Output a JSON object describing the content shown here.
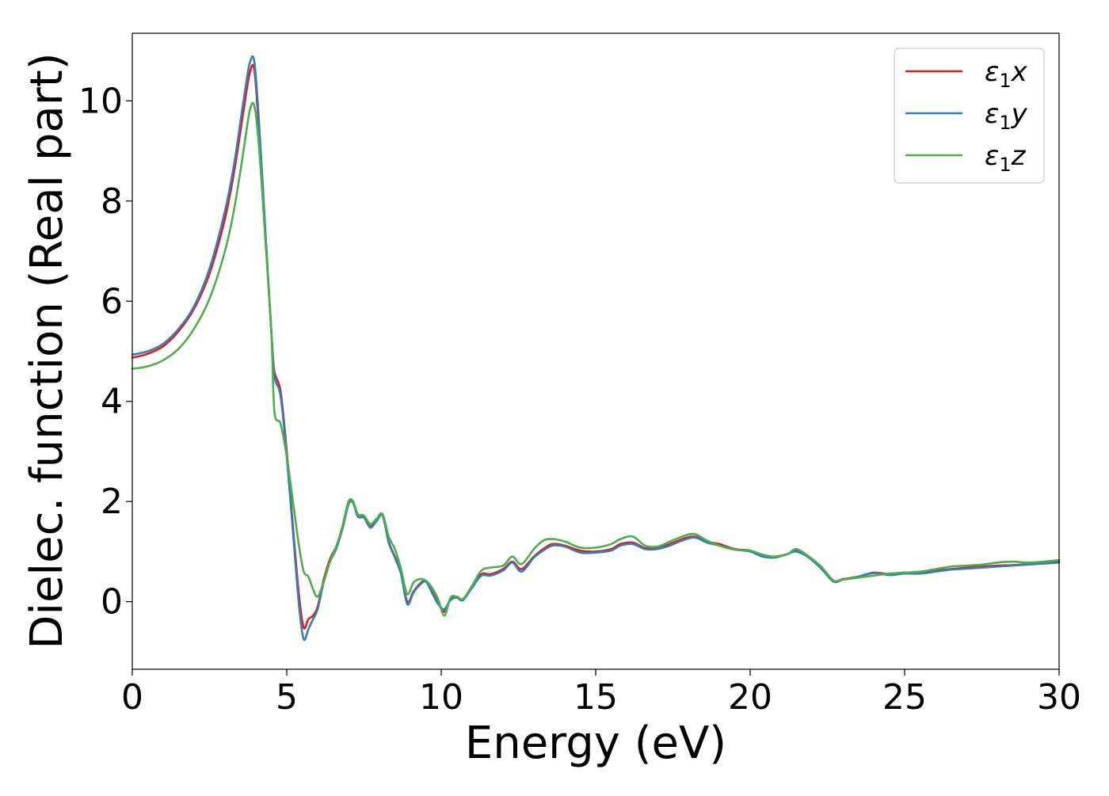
{
  "chart_data": {
    "type": "line",
    "title": "",
    "xlabel": "Energy (eV)",
    "ylabel": "Dielec. function (Real part)",
    "xlim": [
      0,
      30
    ],
    "ylim": [
      -1.35,
      11.35
    ],
    "xticks": [
      0,
      5,
      10,
      15,
      20,
      25,
      30
    ],
    "yticks": [
      0,
      2,
      4,
      6,
      8,
      10
    ],
    "xtick_labels": [
      "0",
      "5",
      "10",
      "15",
      "20",
      "25",
      "30"
    ],
    "ytick_labels": [
      "0",
      "2",
      "4",
      "6",
      "8",
      "10"
    ],
    "grid": false,
    "legend_position": "top-right",
    "series": [
      {
        "name": "ε1x",
        "legend_base": "ε",
        "legend_sub": "1",
        "legend_suffix": "x",
        "color": "#e41a1c",
        "x": [
          0,
          0.5,
          1,
          1.5,
          2,
          2.5,
          3,
          3.3,
          3.6,
          3.8,
          3.95,
          4.1,
          4.3,
          4.5,
          4.6,
          4.8,
          5.0,
          5.2,
          5.4,
          5.55,
          5.7,
          5.85,
          6.0,
          6.2,
          6.4,
          6.6,
          6.8,
          7.0,
          7.15,
          7.3,
          7.5,
          7.7,
          7.9,
          8.1,
          8.3,
          8.5,
          8.7,
          8.9,
          9.1,
          9.3,
          9.5,
          9.7,
          9.9,
          10.1,
          10.3,
          10.5,
          10.7,
          11.0,
          11.3,
          11.6,
          12.0,
          12.3,
          12.6,
          13.0,
          13.3,
          13.6,
          14.0,
          14.5,
          15.0,
          15.5,
          15.8,
          16.2,
          16.6,
          17.0,
          17.4,
          17.8,
          18.2,
          18.6,
          19.0,
          19.5,
          20.0,
          20.4,
          20.8,
          21.2,
          21.5,
          21.9,
          22.3,
          22.7,
          23.0,
          23.5,
          24.0,
          24.5,
          25.0,
          25.5,
          26.0,
          26.5,
          27.0,
          27.5,
          28.0,
          28.5,
          29.0,
          29.5,
          30.0
        ],
        "values": [
          4.87,
          4.95,
          5.1,
          5.4,
          5.85,
          6.55,
          7.65,
          8.6,
          9.8,
          10.55,
          10.62,
          9.4,
          7.4,
          5.4,
          4.6,
          4.2,
          3.0,
          1.5,
          0.1,
          -0.52,
          -0.35,
          -0.28,
          -0.1,
          0.45,
          0.85,
          1.1,
          1.45,
          1.95,
          1.98,
          1.7,
          1.68,
          1.5,
          1.62,
          1.73,
          1.2,
          0.9,
          0.6,
          0.0,
          0.2,
          0.35,
          0.42,
          0.2,
          0.0,
          -0.2,
          0.05,
          0.1,
          0.05,
          0.3,
          0.55,
          0.55,
          0.65,
          0.8,
          0.65,
          0.9,
          1.05,
          1.15,
          1.12,
          1.02,
          1.0,
          1.05,
          1.15,
          1.18,
          1.07,
          1.08,
          1.15,
          1.25,
          1.3,
          1.2,
          1.15,
          1.05,
          1.02,
          0.92,
          0.9,
          0.95,
          1.02,
          0.9,
          0.68,
          0.42,
          0.45,
          0.5,
          0.58,
          0.55,
          0.58,
          0.58,
          0.62,
          0.65,
          0.68,
          0.7,
          0.72,
          0.73,
          0.75,
          0.77,
          0.8
        ]
      },
      {
        "name": "ε1y",
        "legend_base": "ε",
        "legend_sub": "1",
        "legend_suffix": "y",
        "color": "#377eb8",
        "x": [
          0,
          0.5,
          1,
          1.5,
          2,
          2.5,
          3,
          3.3,
          3.6,
          3.8,
          3.95,
          4.1,
          4.3,
          4.5,
          4.6,
          4.8,
          5.0,
          5.2,
          5.4,
          5.55,
          5.7,
          5.85,
          6.0,
          6.2,
          6.4,
          6.6,
          6.8,
          7.0,
          7.15,
          7.3,
          7.5,
          7.7,
          7.9,
          8.1,
          8.3,
          8.5,
          8.7,
          8.9,
          9.1,
          9.3,
          9.5,
          9.7,
          9.9,
          10.1,
          10.3,
          10.5,
          10.7,
          11.0,
          11.3,
          11.6,
          12.0,
          12.3,
          12.6,
          13.0,
          13.3,
          13.6,
          14.0,
          14.5,
          15.0,
          15.5,
          15.8,
          16.2,
          16.6,
          17.0,
          17.4,
          17.8,
          18.2,
          18.6,
          19.0,
          19.5,
          20.0,
          20.4,
          20.8,
          21.2,
          21.5,
          21.9,
          22.3,
          22.7,
          23.0,
          23.5,
          24.0,
          24.5,
          25.0,
          25.5,
          26.0,
          26.5,
          27.0,
          27.5,
          28.0,
          28.5,
          29.0,
          29.5,
          30.0
        ],
        "values": [
          4.93,
          5.0,
          5.15,
          5.45,
          5.9,
          6.65,
          7.8,
          8.75,
          10.0,
          10.75,
          10.78,
          9.6,
          7.5,
          5.4,
          4.5,
          4.1,
          2.9,
          1.4,
          -0.1,
          -0.75,
          -0.55,
          -0.35,
          -0.15,
          0.4,
          0.8,
          1.05,
          1.45,
          1.95,
          1.97,
          1.7,
          1.68,
          1.48,
          1.6,
          1.72,
          1.18,
          0.88,
          0.55,
          -0.05,
          0.18,
          0.33,
          0.4,
          0.18,
          -0.05,
          -0.15,
          0.03,
          0.08,
          0.03,
          0.28,
          0.52,
          0.52,
          0.62,
          0.78,
          0.6,
          0.88,
          1.02,
          1.12,
          1.1,
          0.98,
          0.98,
          1.02,
          1.12,
          1.15,
          1.05,
          1.05,
          1.12,
          1.22,
          1.28,
          1.18,
          1.12,
          1.04,
          1.0,
          0.9,
          0.88,
          0.95,
          1.0,
          0.88,
          0.66,
          0.4,
          0.44,
          0.5,
          0.57,
          0.53,
          0.56,
          0.56,
          0.6,
          0.64,
          0.66,
          0.68,
          0.7,
          0.72,
          0.74,
          0.76,
          0.78
        ]
      },
      {
        "name": "ε1z",
        "legend_base": "ε",
        "legend_sub": "1",
        "legend_suffix": "z",
        "color": "#4daf4a",
        "x": [
          0,
          0.5,
          1,
          1.5,
          2,
          2.5,
          3,
          3.3,
          3.6,
          3.8,
          3.95,
          4.1,
          4.3,
          4.5,
          4.6,
          4.8,
          5.0,
          5.2,
          5.4,
          5.55,
          5.7,
          5.85,
          6.0,
          6.2,
          6.4,
          6.6,
          6.8,
          7.0,
          7.15,
          7.3,
          7.5,
          7.7,
          7.9,
          8.1,
          8.3,
          8.5,
          8.7,
          8.9,
          9.1,
          9.3,
          9.5,
          9.7,
          9.9,
          10.1,
          10.3,
          10.5,
          10.7,
          11.0,
          11.3,
          11.6,
          12.0,
          12.3,
          12.6,
          13.0,
          13.3,
          13.6,
          14.0,
          14.5,
          15.0,
          15.5,
          15.8,
          16.2,
          16.6,
          17.0,
          17.4,
          17.8,
          18.2,
          18.6,
          19.0,
          19.5,
          20.0,
          20.4,
          20.8,
          21.2,
          21.5,
          21.9,
          22.3,
          22.7,
          23.0,
          23.5,
          24.0,
          24.5,
          25.0,
          25.5,
          26.0,
          26.5,
          27.0,
          27.5,
          28.0,
          28.5,
          29.0,
          29.5,
          30.0
        ],
        "values": [
          4.65,
          4.7,
          4.82,
          5.05,
          5.45,
          6.05,
          7.0,
          7.85,
          9.0,
          9.8,
          9.9,
          9.1,
          7.3,
          5.4,
          3.8,
          3.55,
          2.9,
          2.0,
          1.1,
          0.6,
          0.5,
          0.25,
          0.1,
          0.4,
          0.8,
          1.1,
          1.5,
          2.0,
          2.0,
          1.75,
          1.72,
          1.55,
          1.65,
          1.75,
          1.3,
          1.05,
          0.65,
          0.15,
          0.38,
          0.45,
          0.42,
          0.28,
          0.05,
          -0.28,
          0.08,
          0.1,
          0.05,
          0.32,
          0.62,
          0.68,
          0.72,
          0.9,
          0.75,
          1.05,
          1.22,
          1.25,
          1.2,
          1.08,
          1.08,
          1.15,
          1.25,
          1.3,
          1.12,
          1.1,
          1.2,
          1.3,
          1.35,
          1.22,
          1.12,
          1.04,
          1.02,
          0.94,
          0.9,
          0.95,
          1.05,
          0.9,
          0.7,
          0.42,
          0.44,
          0.48,
          0.52,
          0.56,
          0.58,
          0.6,
          0.65,
          0.7,
          0.72,
          0.74,
          0.78,
          0.8,
          0.78,
          0.8,
          0.83
        ]
      }
    ]
  }
}
